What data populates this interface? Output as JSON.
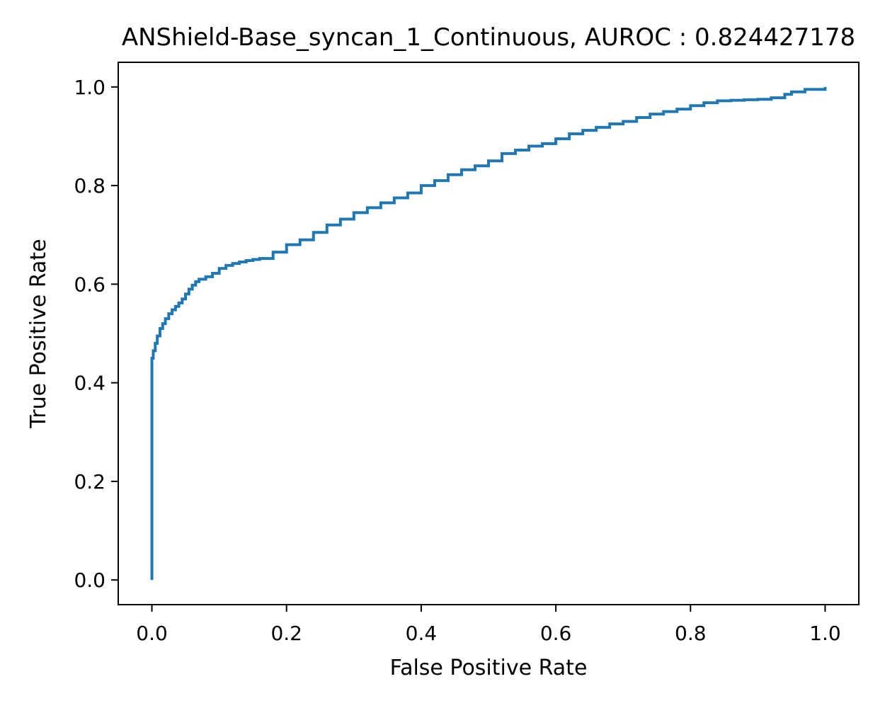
{
  "chart_data": {
    "type": "line",
    "title": "ANShield-Base_syncan_1_Continuous, AUROC : 0.824427178",
    "xlabel": "False Positive Rate",
    "ylabel": "True Positive Rate",
    "xlim": [
      -0.05,
      1.05
    ],
    "ylim": [
      -0.05,
      1.05
    ],
    "xticks": [
      "0.0",
      "0.2",
      "0.4",
      "0.6",
      "0.8",
      "1.0"
    ],
    "yticks": [
      "0.0",
      "0.2",
      "0.4",
      "0.6",
      "0.8",
      "1.0"
    ],
    "grid": false,
    "legend": "none",
    "series": [
      {
        "color": "#1f77b4",
        "x": [
          0.0,
          0.0,
          0.002,
          0.005,
          0.008,
          0.012,
          0.016,
          0.02,
          0.025,
          0.03,
          0.035,
          0.04,
          0.045,
          0.05,
          0.055,
          0.06,
          0.065,
          0.07,
          0.08,
          0.09,
          0.1,
          0.11,
          0.12,
          0.13,
          0.14,
          0.15,
          0.16,
          0.18,
          0.2,
          0.22,
          0.24,
          0.26,
          0.28,
          0.3,
          0.32,
          0.34,
          0.36,
          0.38,
          0.4,
          0.42,
          0.44,
          0.46,
          0.48,
          0.5,
          0.52,
          0.54,
          0.56,
          0.58,
          0.6,
          0.62,
          0.64,
          0.66,
          0.68,
          0.7,
          0.72,
          0.74,
          0.76,
          0.78,
          0.8,
          0.82,
          0.84,
          0.86,
          0.88,
          0.9,
          0.92,
          0.94,
          0.95,
          0.97,
          1.0
        ],
        "y": [
          0.0,
          0.45,
          0.465,
          0.48,
          0.495,
          0.51,
          0.52,
          0.53,
          0.54,
          0.548,
          0.555,
          0.562,
          0.57,
          0.58,
          0.59,
          0.598,
          0.605,
          0.61,
          0.615,
          0.622,
          0.632,
          0.638,
          0.642,
          0.645,
          0.648,
          0.65,
          0.652,
          0.665,
          0.68,
          0.69,
          0.705,
          0.72,
          0.732,
          0.745,
          0.755,
          0.765,
          0.775,
          0.785,
          0.8,
          0.81,
          0.822,
          0.832,
          0.84,
          0.85,
          0.865,
          0.872,
          0.88,
          0.885,
          0.895,
          0.905,
          0.912,
          0.918,
          0.925,
          0.93,
          0.938,
          0.945,
          0.95,
          0.955,
          0.962,
          0.968,
          0.972,
          0.973,
          0.974,
          0.975,
          0.978,
          0.985,
          0.99,
          0.995,
          1.0
        ]
      }
    ]
  }
}
